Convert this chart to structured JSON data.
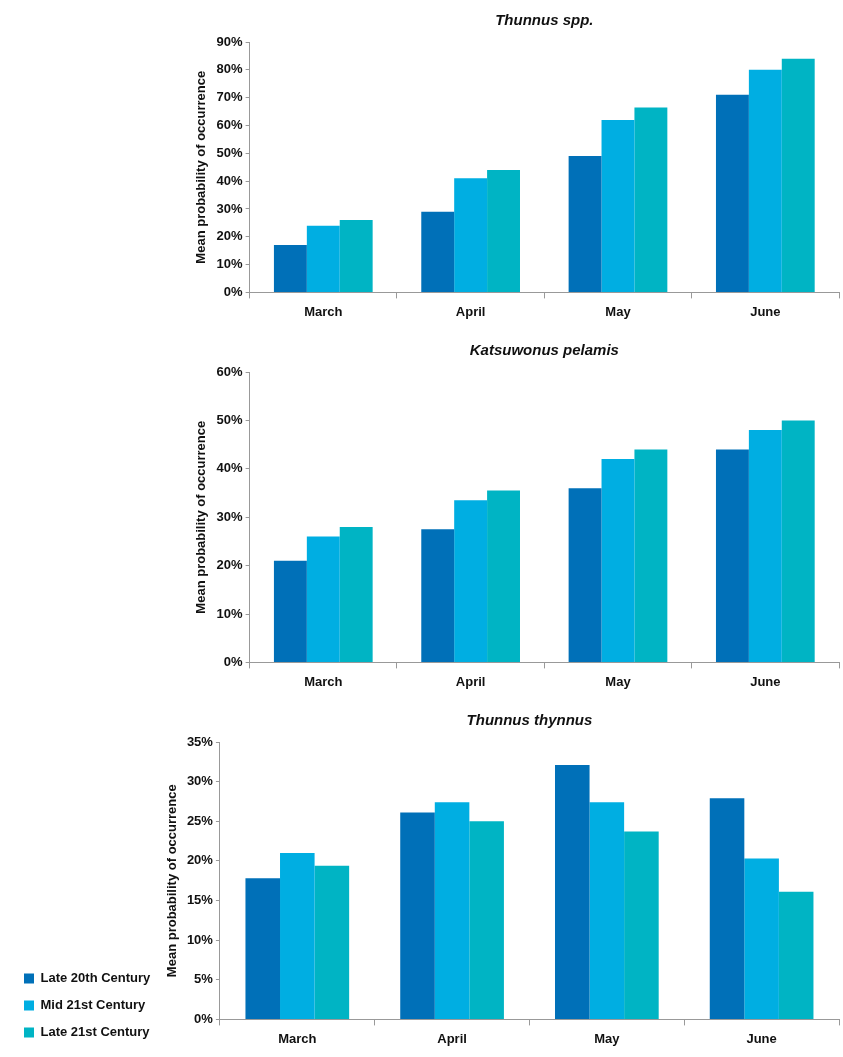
{
  "chart_data": [
    {
      "type": "bar",
      "title": "Thunnus spp.",
      "ylabel": "Mean probability of occurrence",
      "categories": [
        "March",
        "April",
        "May",
        "June"
      ],
      "series": [
        {
          "color": "#0070b8",
          "values": [
            17,
            29,
            49,
            71
          ]
        },
        {
          "color": "#00aee2",
          "values": [
            24,
            41,
            62,
            80
          ]
        },
        {
          "color": "#00b4c4",
          "values": [
            26,
            44,
            66.5,
            84
          ]
        }
      ],
      "ylim": [
        0,
        90
      ],
      "yticks": [
        {
          "value": 0,
          "label": "0%"
        },
        {
          "value": 10,
          "label": "10%"
        },
        {
          "value": 20,
          "label": "20%"
        },
        {
          "value": 30,
          "label": "30%"
        },
        {
          "value": 40,
          "label": "40%"
        },
        {
          "value": 50,
          "label": "50%"
        },
        {
          "value": 60,
          "label": "60%"
        },
        {
          "value": 70,
          "label": "70%"
        },
        {
          "value": 80,
          "label": "80%"
        },
        {
          "value": 90,
          "label": "90%"
        }
      ],
      "grid": false
    },
    {
      "type": "bar",
      "title": "Katsuwonus pelamis",
      "ylabel": "Mean probability of occurrence",
      "categories": [
        "March",
        "April",
        "May",
        "June"
      ],
      "series": [
        {
          "color": "#0070b8",
          "values": [
            21,
            27.5,
            36,
            44
          ]
        },
        {
          "color": "#00aee2",
          "values": [
            26,
            33.5,
            42,
            48
          ]
        },
        {
          "color": "#00b4c4",
          "values": [
            28,
            35.5,
            44,
            50
          ]
        }
      ],
      "ylim": [
        0,
        60
      ],
      "yticks": [
        {
          "value": 0,
          "label": "0%"
        },
        {
          "value": 10,
          "label": "10%"
        },
        {
          "value": 20,
          "label": "20%"
        },
        {
          "value": 30,
          "label": "30%"
        },
        {
          "value": 40,
          "label": "40%"
        },
        {
          "value": 50,
          "label": "50%"
        },
        {
          "value": 60,
          "label": "60%"
        }
      ],
      "grid": false
    },
    {
      "type": "bar",
      "title": "Thunnus thynnus",
      "ylabel": "Mean probability of occurrence",
      "categories": [
        "March",
        "April",
        "May",
        "June"
      ],
      "series": [
        {
          "name": "Late 20th Century",
          "color": "#0070b8",
          "values": [
            17.8,
            26.1,
            32.1,
            27.9
          ]
        },
        {
          "name": "Mid 21st Century",
          "color": "#00aee2",
          "values": [
            21,
            27.4,
            27.4,
            20.3
          ]
        },
        {
          "name": "Late 21st Century",
          "color": "#00b4c4",
          "values": [
            19.4,
            25,
            23.7,
            16.1
          ]
        }
      ],
      "ylim": [
        0,
        35
      ],
      "yticks": [
        {
          "value": 0,
          "label": "0%"
        },
        {
          "value": 5,
          "label": "5%"
        },
        {
          "value": 10,
          "label": "10%"
        },
        {
          "value": 15,
          "label": "15%"
        },
        {
          "value": 20,
          "label": "20%"
        },
        {
          "value": 25,
          "label": "25%"
        },
        {
          "value": 30,
          "label": "30%"
        },
        {
          "value": 35,
          "label": "35%"
        }
      ],
      "grid": false,
      "legend": "bottom left"
    }
  ]
}
